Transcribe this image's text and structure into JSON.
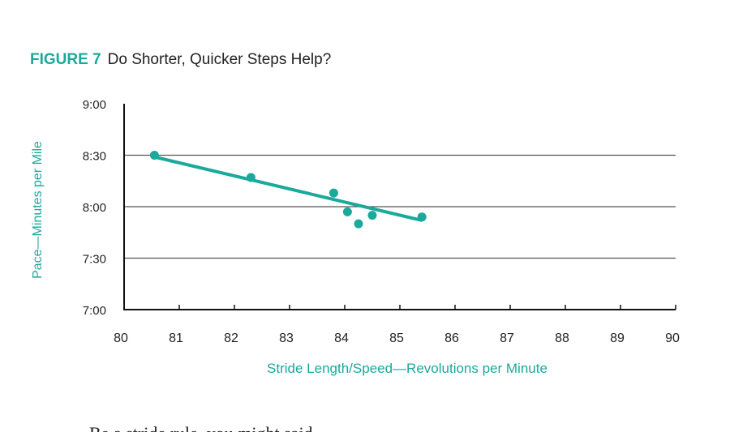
{
  "figure": {
    "label": "FIGURE 7",
    "title": "Do Shorter, Quicker Steps Help?"
  },
  "colors": {
    "accent": "#1aa99a",
    "grid": "#555555",
    "axis": "#111111",
    "text": "#222222"
  },
  "chart_data": {
    "type": "scatter",
    "title": "Do Shorter, Quicker Steps Help?",
    "xlabel": "Stride Length/Speed—Revolutions per Minute",
    "ylabel": "Pace—Minutes per Mile",
    "xlim": [
      80,
      90
    ],
    "ylim": [
      420,
      540
    ],
    "x_ticks": [
      {
        "value": 80,
        "label": "80"
      },
      {
        "value": 81,
        "label": "81"
      },
      {
        "value": 82,
        "label": "82"
      },
      {
        "value": 83,
        "label": "83"
      },
      {
        "value": 84,
        "label": "84"
      },
      {
        "value": 85,
        "label": "85"
      },
      {
        "value": 86,
        "label": "86"
      },
      {
        "value": 87,
        "label": "87"
      },
      {
        "value": 88,
        "label": "88"
      },
      {
        "value": 89,
        "label": "89"
      },
      {
        "value": 90,
        "label": "90"
      }
    ],
    "y_ticks": [
      {
        "value": 420,
        "label": "7:00"
      },
      {
        "value": 450,
        "label": "7:30"
      },
      {
        "value": 480,
        "label": "8:00"
      },
      {
        "value": 510,
        "label": "8:30"
      },
      {
        "value": 540,
        "label": "9:00"
      }
    ],
    "gridlines_y": [
      450,
      480,
      510
    ],
    "points": [
      {
        "x": 80.55,
        "y": 510
      },
      {
        "x": 82.3,
        "y": 497
      },
      {
        "x": 83.8,
        "y": 488
      },
      {
        "x": 84.05,
        "y": 477
      },
      {
        "x": 84.25,
        "y": 470
      },
      {
        "x": 84.5,
        "y": 475
      },
      {
        "x": 85.4,
        "y": 474
      }
    ],
    "trendline": [
      {
        "x": 80.55,
        "y": 509
      },
      {
        "x": 85.4,
        "y": 472
      }
    ]
  },
  "body_text": {
    "cut_line": "Be a stride rule, you might said"
  }
}
